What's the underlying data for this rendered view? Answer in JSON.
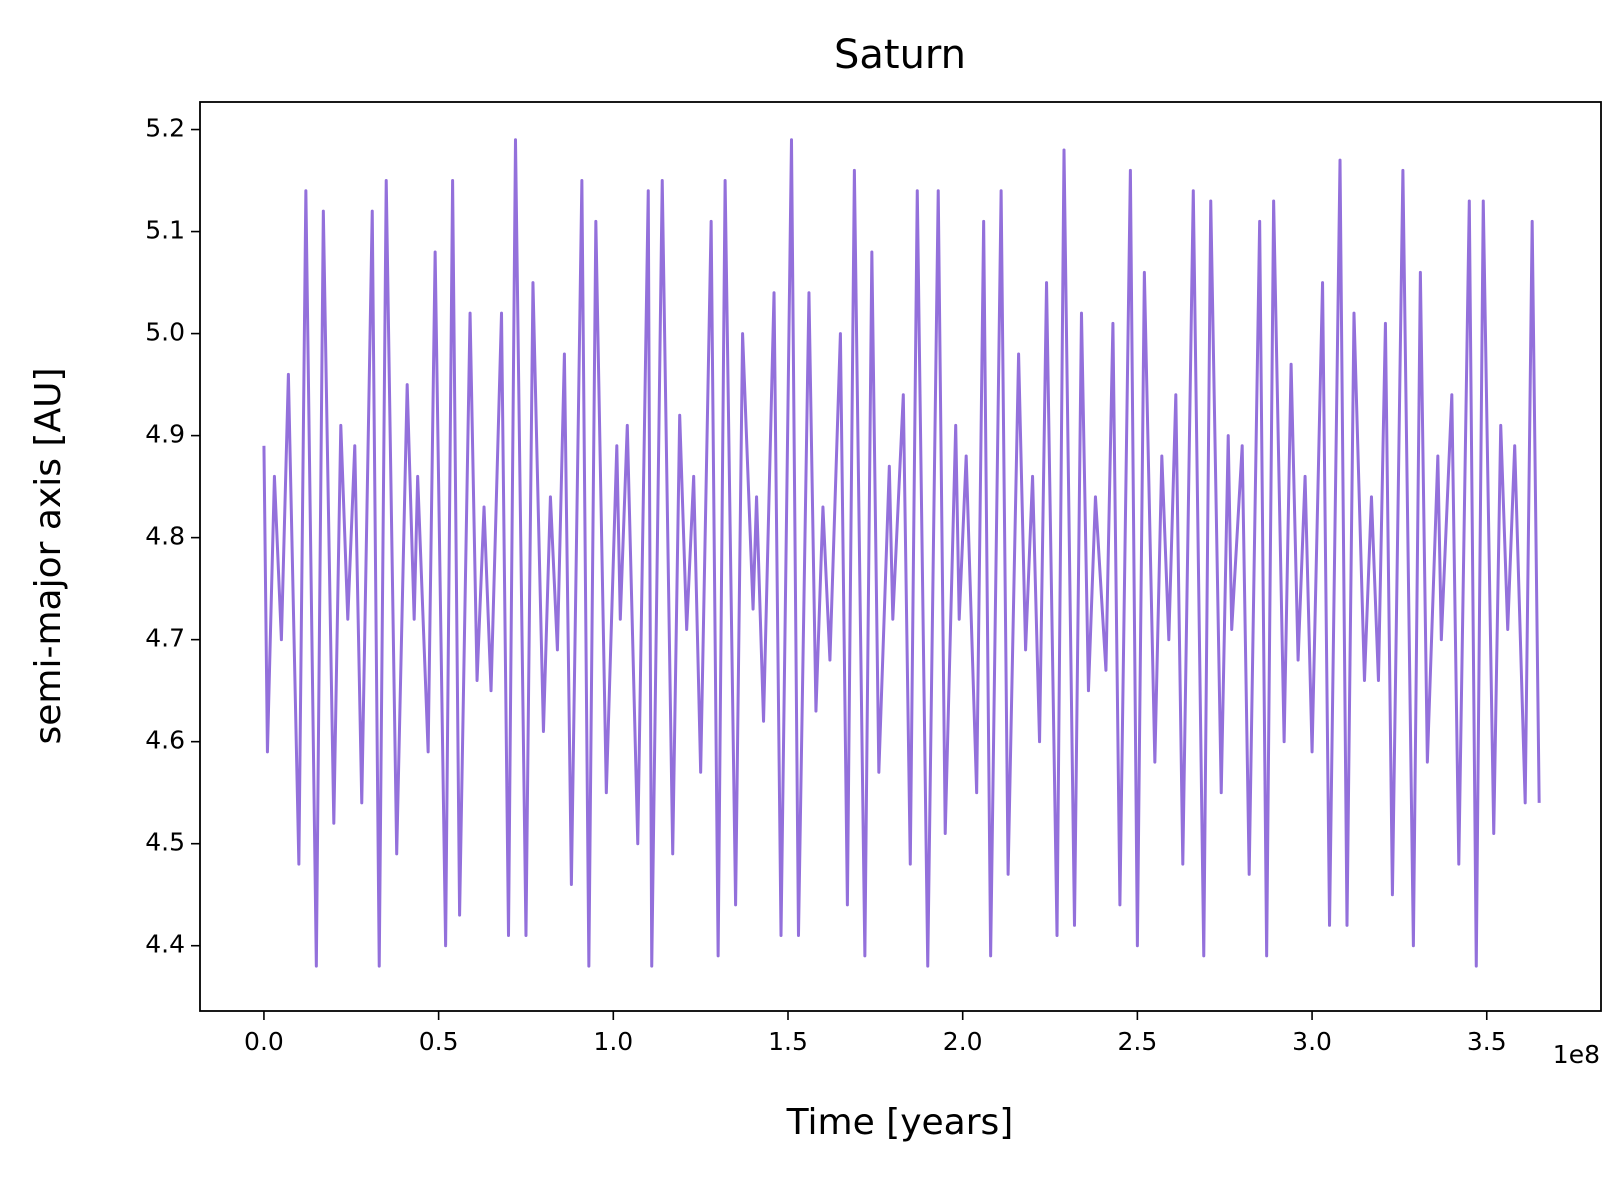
{
  "chart_data": {
    "type": "line",
    "title": "Saturn",
    "x_label": "Time [years]",
    "y_label": "semi-major axis [AU]",
    "x_offset_label": "1e8",
    "color": "#9370db",
    "xlim": [
      -18300000,
      382700000
    ],
    "xticks": [
      {
        "value": 0,
        "label": "0.0"
      },
      {
        "value": 50000000,
        "label": "0.5"
      },
      {
        "value": 100000000,
        "label": "1.0"
      },
      {
        "value": 150000000,
        "label": "1.5"
      },
      {
        "value": 200000000,
        "label": "2.0"
      },
      {
        "value": 250000000,
        "label": "2.5"
      },
      {
        "value": 300000000,
        "label": "3.0"
      },
      {
        "value": 350000000,
        "label": "3.5"
      }
    ],
    "ylim": [
      4.336,
      5.227
    ],
    "yticks": [
      4.4,
      4.5,
      4.6,
      4.7,
      4.8,
      4.9,
      {
        "value": 5,
        "label": "5.0"
      },
      5.1,
      5.2
    ],
    "x": [
      0,
      1000000,
      3000000,
      5000000,
      7000000,
      10000000,
      12000000,
      15000000,
      17000000,
      20000000,
      22000000,
      24000000,
      26000000,
      28000000,
      31000000,
      33000000,
      35000000,
      38000000,
      41000000,
      43000000,
      44000000,
      47000000,
      49000000,
      52000000,
      54000000,
      56000000,
      59000000,
      61000000,
      63000000,
      65000000,
      68000000,
      70000000,
      72000000,
      75000000,
      77000000,
      80000000,
      82000000,
      84000000,
      86000000,
      88000000,
      91000000,
      93000000,
      95000000,
      98000000,
      101000000,
      102000000,
      104000000,
      107000000,
      110000000,
      111000000,
      114000000,
      117000000,
      119000000,
      121000000,
      123000000,
      125000000,
      128000000,
      130000000,
      132000000,
      135000000,
      137000000,
      140000000,
      141000000,
      143000000,
      146000000,
      148000000,
      151000000,
      153000000,
      156000000,
      158000000,
      160000000,
      162000000,
      165000000,
      167000000,
      169000000,
      172000000,
      174000000,
      176000000,
      179000000,
      180000000,
      183000000,
      185000000,
      187000000,
      190000000,
      193000000,
      195000000,
      198000000,
      199000000,
      201000000,
      204000000,
      206000000,
      208000000,
      211000000,
      213000000,
      216000000,
      218000000,
      220000000,
      222000000,
      224000000,
      227000000,
      229000000,
      232000000,
      234000000,
      236000000,
      238000000,
      241000000,
      243000000,
      245000000,
      248000000,
      250000000,
      252000000,
      255000000,
      257000000,
      259000000,
      261000000,
      263000000,
      266000000,
      269000000,
      271000000,
      274000000,
      276000000,
      277000000,
      280000000,
      282000000,
      285000000,
      287000000,
      289000000,
      292000000,
      294000000,
      296000000,
      298000000,
      300000000,
      303000000,
      305000000,
      308000000,
      310000000,
      312000000,
      315000000,
      317000000,
      319000000,
      321000000,
      323000000,
      326000000,
      329000000,
      331000000,
      333000000,
      336000000,
      337000000,
      340000000,
      342000000,
      345000000,
      347000000,
      349000000,
      352000000,
      354000000,
      356000000,
      358000000,
      361000000,
      363000000,
      365000000
    ],
    "values": [
      4.89,
      4.59,
      4.86,
      4.7,
      4.96,
      4.48,
      5.14,
      4.38,
      5.12,
      4.52,
      4.91,
      4.72,
      4.89,
      4.54,
      5.12,
      4.38,
      5.15,
      4.49,
      4.95,
      4.72,
      4.86,
      4.59,
      5.08,
      4.4,
      5.15,
      4.43,
      5.02,
      4.66,
      4.83,
      4.65,
      5.02,
      4.41,
      5.19,
      4.41,
      5.05,
      4.61,
      4.84,
      4.69,
      4.98,
      4.46,
      5.15,
      4.38,
      5.11,
      4.55,
      4.89,
      4.72,
      4.91,
      4.5,
      5.14,
      4.38,
      5.15,
      4.49,
      4.92,
      4.71,
      4.86,
      4.57,
      5.11,
      4.39,
      5.15,
      4.44,
      5.0,
      4.73,
      4.84,
      4.62,
      5.04,
      4.41,
      5.19,
      4.41,
      5.04,
      4.63,
      4.83,
      4.68,
      5.0,
      4.44,
      5.16,
      4.39,
      5.08,
      4.57,
      4.87,
      4.72,
      4.94,
      4.48,
      5.14,
      4.38,
      5.14,
      4.51,
      4.91,
      4.72,
      4.88,
      4.55,
      5.11,
      4.39,
      5.14,
      4.47,
      4.98,
      4.69,
      4.86,
      4.6,
      5.05,
      4.41,
      5.18,
      4.42,
      5.02,
      4.65,
      4.84,
      4.67,
      5.01,
      4.44,
      5.16,
      4.4,
      5.06,
      4.58,
      4.88,
      4.7,
      4.94,
      4.48,
      5.14,
      4.39,
      5.13,
      4.55,
      4.9,
      4.71,
      4.89,
      4.47,
      5.11,
      4.39,
      5.13,
      4.6,
      4.97,
      4.68,
      4.86,
      4.59,
      5.05,
      4.42,
      5.17,
      4.42,
      5.02,
      4.66,
      4.84,
      4.66,
      5.01,
      4.45,
      5.16,
      4.4,
      5.06,
      4.58,
      4.88,
      4.7,
      4.94,
      4.48,
      5.13,
      4.38,
      5.13,
      4.51,
      4.91,
      4.71,
      4.89,
      4.54,
      5.11,
      4.54
    ]
  }
}
